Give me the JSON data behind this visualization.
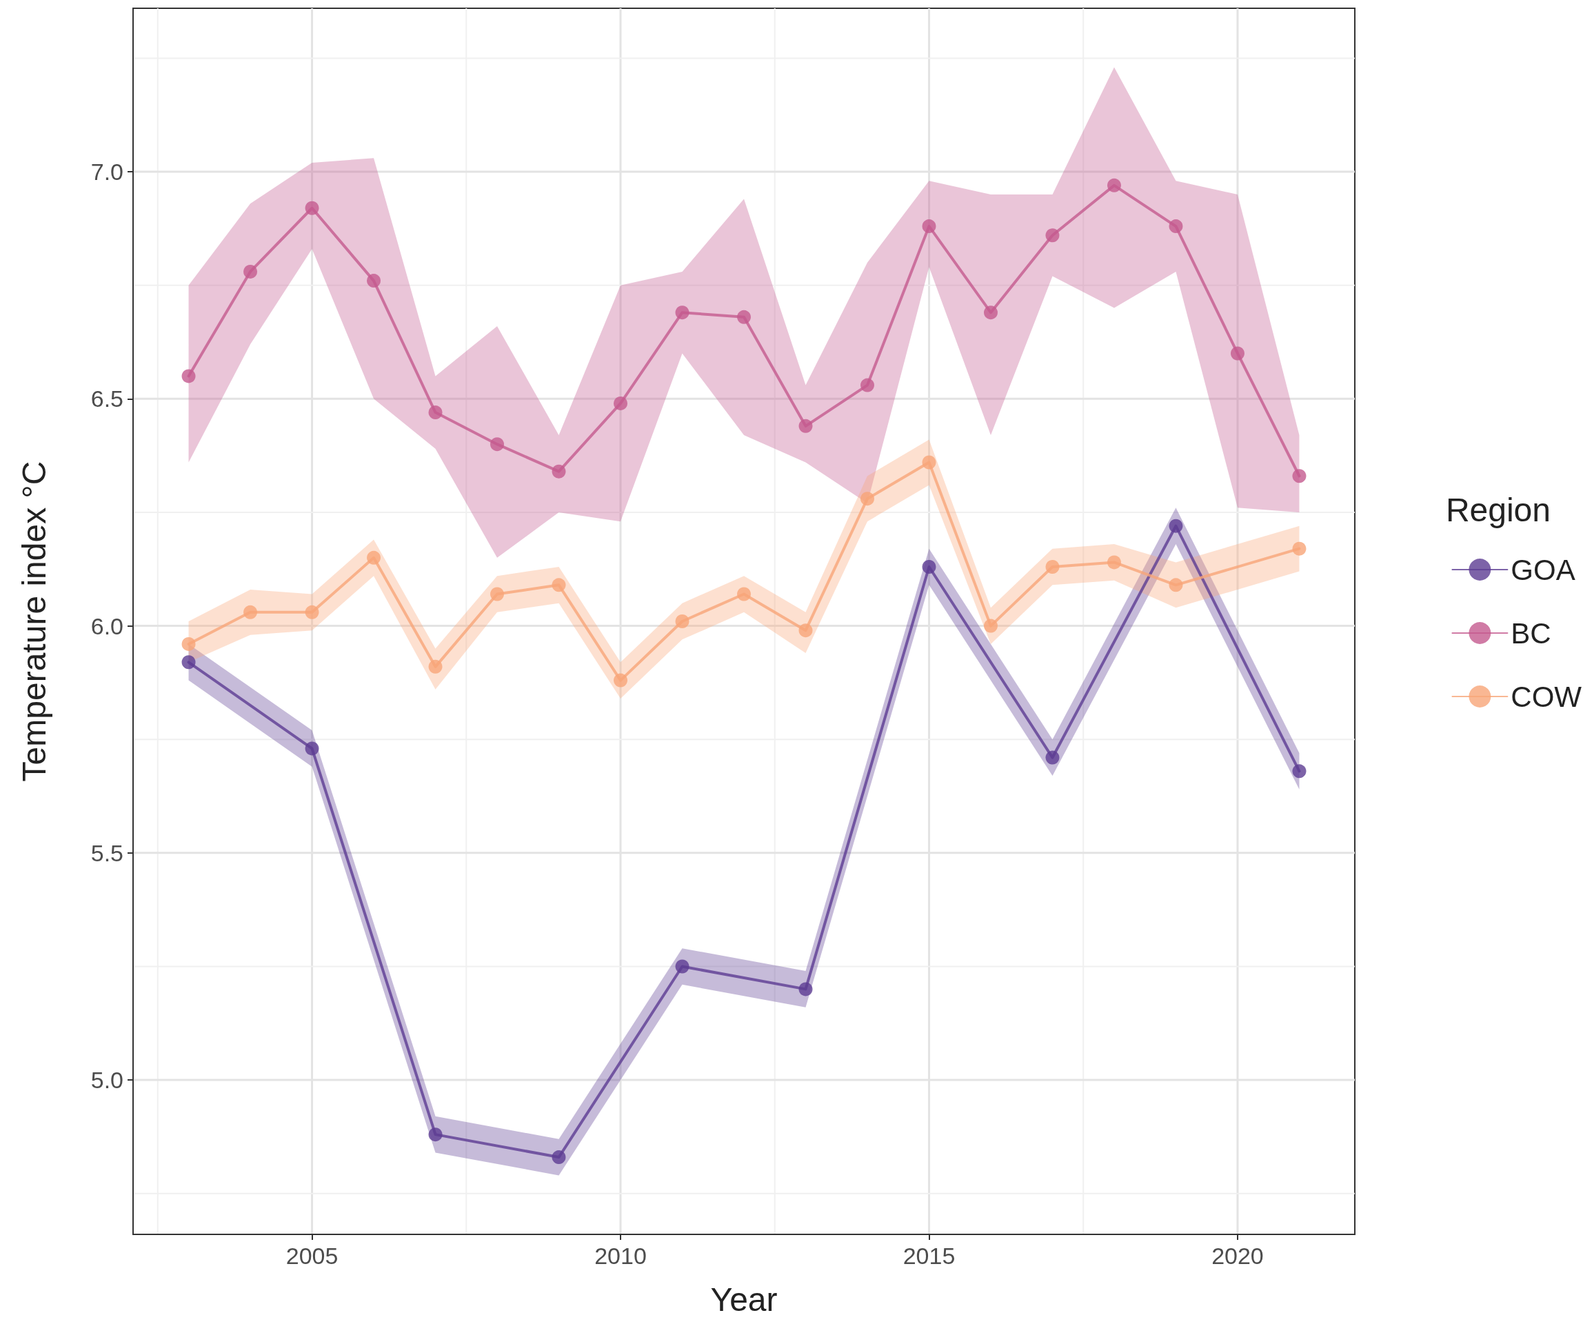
{
  "chart_data": {
    "type": "line",
    "xlabel": "Year",
    "ylabel": "Temperature index °C",
    "legend_title": "Region",
    "legend": "right",
    "grid": true,
    "marker": "circle",
    "line_style": "solid",
    "xlim": [
      2002.1,
      2021.9
    ],
    "ylim": [
      4.66,
      7.36
    ],
    "xticks": [
      {
        "value": 2002.5,
        "label": null
      },
      2005,
      {
        "value": 2007.5,
        "label": null
      },
      2010,
      {
        "value": 2012.5,
        "label": null
      },
      2015,
      {
        "value": 2017.5,
        "label": null
      },
      2020
    ],
    "yticks": [
      {
        "value": 4.75,
        "label": null
      },
      {
        "value": 5,
        "label": "5.0"
      },
      {
        "value": 5.25,
        "label": null
      },
      5.5,
      {
        "value": 5.75,
        "label": null
      },
      {
        "value": 6,
        "label": "6.0"
      },
      {
        "value": 6.25,
        "label": null
      },
      6.5,
      {
        "value": 6.75,
        "label": null
      },
      {
        "value": 7,
        "label": "7.0"
      },
      {
        "value": 7.25,
        "label": null
      }
    ],
    "series": [
      {
        "name": "GOA",
        "color": "#5c3c92",
        "x": [
          2003,
          2005,
          2007,
          2009,
          2011,
          2013,
          2015,
          2017,
          2019,
          2021
        ],
        "values": [
          5.92,
          5.73,
          4.88,
          4.83,
          5.25,
          5.2,
          6.13,
          5.71,
          6.22,
          5.68
        ],
        "lower": [
          5.88,
          5.69,
          4.84,
          4.79,
          5.21,
          5.16,
          6.09,
          5.67,
          6.18,
          5.64
        ],
        "upper": [
          5.96,
          5.77,
          4.92,
          4.87,
          5.29,
          5.24,
          6.17,
          5.75,
          6.26,
          5.72
        ]
      },
      {
        "name": "BC",
        "color": "#c45a8f",
        "x": [
          2003,
          2004,
          2005,
          2006,
          2007,
          2008,
          2009,
          2010,
          2011,
          2012,
          2013,
          2014,
          2015,
          2016,
          2017,
          2018,
          2019,
          2020,
          2021
        ],
        "values": [
          6.55,
          6.78,
          6.92,
          6.76,
          6.47,
          6.4,
          6.34,
          6.49,
          6.69,
          6.68,
          6.44,
          6.53,
          6.88,
          6.69,
          6.86,
          6.97,
          6.88,
          6.6,
          6.33
        ],
        "lower": [
          6.36,
          6.62,
          6.83,
          6.5,
          6.39,
          6.15,
          6.25,
          6.23,
          6.6,
          6.42,
          6.36,
          6.27,
          6.79,
          6.42,
          6.77,
          6.7,
          6.78,
          6.26,
          6.25
        ],
        "upper": [
          6.75,
          6.93,
          7.02,
          7.03,
          6.55,
          6.66,
          6.42,
          6.75,
          6.78,
          6.94,
          6.53,
          6.8,
          6.98,
          6.95,
          6.95,
          7.23,
          6.98,
          6.95,
          6.42
        ]
      },
      {
        "name": "COW",
        "color": "#f8a578",
        "x": [
          2003,
          2004,
          2005,
          2006,
          2007,
          2008,
          2009,
          2010,
          2011,
          2012,
          2013,
          2014,
          2015,
          2016,
          2017,
          2018,
          2019,
          2021
        ],
        "values": [
          5.96,
          6.03,
          6.03,
          6.15,
          5.91,
          6.07,
          6.09,
          5.88,
          6.01,
          6.07,
          5.99,
          6.28,
          6.36,
          6.0,
          6.13,
          6.14,
          6.09,
          6.17
        ],
        "lower": [
          5.92,
          5.98,
          5.99,
          6.11,
          5.86,
          6.03,
          6.05,
          5.84,
          5.97,
          6.03,
          5.94,
          6.23,
          6.31,
          5.96,
          6.09,
          6.1,
          6.04,
          6.12
        ],
        "upper": [
          6.01,
          6.08,
          6.07,
          6.19,
          5.95,
          6.11,
          6.13,
          5.92,
          6.05,
          6.11,
          6.03,
          6.33,
          6.41,
          6.04,
          6.17,
          6.18,
          6.14,
          6.22
        ]
      }
    ]
  }
}
